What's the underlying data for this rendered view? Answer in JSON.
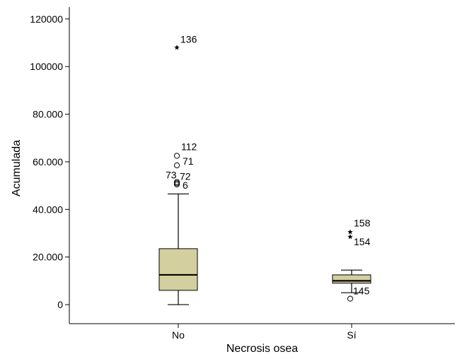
{
  "chart_data": {
    "type": "box",
    "xlabel": "Necrosis osea",
    "ylabel": "Acumulada",
    "ylim": [
      -8000,
      125000
    ],
    "yticks": [
      {
        "value": 0,
        "label": "0"
      },
      {
        "value": 20000,
        "label": "20.000"
      },
      {
        "value": 40000,
        "label": "40.000"
      },
      {
        "value": 60000,
        "label": "60.000"
      },
      {
        "value": 80000,
        "label": "80.000"
      },
      {
        "value": 100000,
        "label": "100000"
      },
      {
        "value": 120000,
        "label": "120000"
      }
    ],
    "grid": false,
    "box_color": "#d4cf9f",
    "groups": [
      {
        "category": "No",
        "whisker_low": 0,
        "q1": 6000,
        "median": 12500,
        "q3": 23500,
        "whisker_high": 46500,
        "outliers": [
          {
            "value": 108000,
            "label": "136",
            "marker": "star"
          },
          {
            "value": 62500,
            "label": "112",
            "marker": "circle"
          },
          {
            "value": 58500,
            "label": "71",
            "marker": "circle"
          },
          {
            "value": 51500,
            "label": "73",
            "marker": "circle"
          },
          {
            "value": 51000,
            "label": "72",
            "marker": "circle"
          },
          {
            "value": 50500,
            "label": "6",
            "marker": "circle"
          }
        ]
      },
      {
        "category": "Sí",
        "whisker_low": 5000,
        "q1": 9000,
        "median": 10000,
        "q3": 12500,
        "whisker_high": 14500,
        "outliers": [
          {
            "value": 30500,
            "label": "158",
            "marker": "star"
          },
          {
            "value": 28500,
            "label": "154",
            "marker": "star"
          },
          {
            "value": 2500,
            "label": "145",
            "marker": "circle"
          }
        ]
      }
    ]
  }
}
